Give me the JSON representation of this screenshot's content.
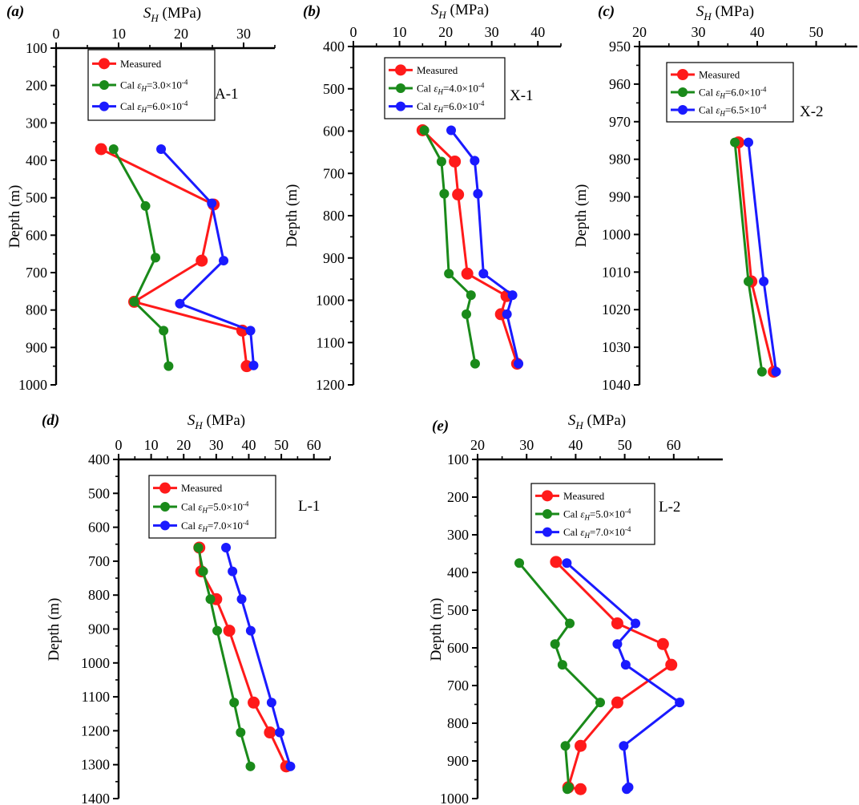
{
  "figure": {
    "panels": [
      {
        "id": "a",
        "letter": "(a)",
        "well": "A-1"
      },
      {
        "id": "b",
        "letter": "(b)",
        "well": "X-1"
      },
      {
        "id": "c",
        "letter": "(c)",
        "well": "X-2"
      },
      {
        "id": "d",
        "letter": "(d)",
        "well": "L-1"
      },
      {
        "id": "e",
        "letter": "(e)",
        "well": "L-2"
      }
    ]
  },
  "colors": {
    "measured": "#ff1a1a",
    "cal_low": "#1a8a1a",
    "cal_high": "#1a1aff"
  },
  "chart_data": [
    {
      "panel": "(a)",
      "well": "A-1",
      "type": "line",
      "xlabel": "S_H (MPa)",
      "ylabel": "Depth (m)",
      "xlim": [
        0,
        35
      ],
      "ylim": [
        100,
        1000
      ],
      "xticks": [
        0,
        10,
        20,
        30
      ],
      "yticks": [
        100,
        200,
        300,
        400,
        500,
        600,
        700,
        800,
        900,
        1000
      ],
      "series": [
        {
          "name": "Measured",
          "legend_prefix": "Measured",
          "legend_value": "",
          "color_key": "measured",
          "x": [
            7.2,
            25.2,
            23.3,
            12.5,
            29.8,
            30.5
          ],
          "y": [
            370,
            518,
            668,
            778,
            855,
            950
          ]
        },
        {
          "name": "Cal εH=3.0×10⁻⁴",
          "legend_prefix": "Cal ε",
          "legend_sub": "H",
          "legend_value": "=3.0×10",
          "legend_exp": "-4",
          "color_key": "cal_low",
          "x": [
            9.2,
            14.3,
            15.9,
            12.5,
            17.2,
            18.0
          ],
          "y": [
            370,
            522,
            660,
            778,
            855,
            950
          ]
        },
        {
          "name": "Cal εH=6.0×10⁻⁴",
          "legend_prefix": "Cal ε",
          "legend_sub": "H",
          "legend_value": "=6.0×10",
          "legend_exp": "-4",
          "color_key": "cal_high",
          "x": [
            16.8,
            24.9,
            26.8,
            19.8,
            31.1,
            31.6
          ],
          "y": [
            370,
            515,
            668,
            783,
            855,
            948
          ]
        }
      ]
    },
    {
      "panel": "(b)",
      "well": "X-1",
      "type": "line",
      "xlabel": "S_H (MPa)",
      "ylabel": "Depth (m)",
      "xlim": [
        0,
        45
      ],
      "ylim": [
        400,
        1200
      ],
      "xticks": [
        0,
        10,
        20,
        30,
        40
      ],
      "yticks": [
        400,
        500,
        600,
        700,
        800,
        900,
        1000,
        1100,
        1200
      ],
      "series": [
        {
          "name": "Measured",
          "legend_prefix": "Measured",
          "legend_value": "",
          "color_key": "measured",
          "x": [
            15.0,
            22.0,
            22.7,
            24.7,
            33.2,
            32.0,
            35.5
          ],
          "y": [
            598,
            672,
            750,
            937,
            990,
            1033,
            1150
          ]
        },
        {
          "name": "Cal εH=4.0×10⁻⁴",
          "legend_prefix": "Cal ε",
          "legend_sub": "H",
          "legend_value": "=4.0×10",
          "legend_exp": "-4",
          "color_key": "cal_low",
          "x": [
            15.4,
            19.1,
            19.7,
            20.7,
            25.5,
            24.5,
            26.4
          ],
          "y": [
            598,
            672,
            748,
            937,
            988,
            1033,
            1150
          ]
        },
        {
          "name": "Cal εH=6.0×10⁻⁴",
          "legend_prefix": "Cal ε",
          "legend_sub": "H",
          "legend_value": "=6.0×10",
          "legend_exp": "-4",
          "color_key": "cal_high",
          "x": [
            21.2,
            26.3,
            27.0,
            28.2,
            34.5,
            33.3,
            35.8
          ],
          "y": [
            598,
            670,
            748,
            937,
            988,
            1033,
            1150
          ]
        }
      ]
    },
    {
      "panel": "(c)",
      "well": "X-2",
      "type": "line",
      "xlabel": "S_H (MPa)",
      "ylabel": "Depth (m)",
      "xlim": [
        20,
        57
      ],
      "ylim": [
        950,
        1040
      ],
      "xticks": [
        20,
        30,
        40,
        50
      ],
      "yticks": [
        950,
        960,
        970,
        980,
        990,
        1000,
        1010,
        1020,
        1030,
        1040
      ],
      "series": [
        {
          "name": "Measured",
          "legend_prefix": "Measured",
          "legend_value": "",
          "color_key": "measured",
          "x": [
            36.8,
            39.0,
            42.8
          ],
          "y": [
            975.5,
            1012.5,
            1036.5
          ]
        },
        {
          "name": "Cal εH=6.0×10⁻⁴",
          "legend_prefix": "Cal ε",
          "legend_sub": "H",
          "legend_value": "=6.0×10",
          "legend_exp": "-4",
          "color_key": "cal_low",
          "x": [
            36.2,
            38.5,
            40.8
          ],
          "y": [
            975.5,
            1012.5,
            1036.5
          ]
        },
        {
          "name": "Cal εH=6.5×10⁻⁴",
          "legend_prefix": "Cal ε",
          "legend_sub": "H",
          "legend_value": "=6.5×10",
          "legend_exp": "-4",
          "color_key": "cal_high",
          "x": [
            38.5,
            41.1,
            43.2
          ],
          "y": [
            975.5,
            1012.5,
            1036.5
          ]
        }
      ]
    },
    {
      "panel": "(d)",
      "well": "L-1",
      "type": "line",
      "xlabel": "S_H (MPa)",
      "ylabel": "Depth (m)",
      "xlim": [
        0,
        65
      ],
      "ylim": [
        400,
        1400
      ],
      "xticks": [
        0,
        10,
        20,
        30,
        40,
        50,
        60
      ],
      "yticks": [
        400,
        500,
        600,
        700,
        800,
        900,
        1000,
        1100,
        1200,
        1300,
        1400
      ],
      "series": [
        {
          "name": "Measured",
          "legend_prefix": "Measured",
          "legend_value": "",
          "color_key": "measured",
          "x": [
            24.8,
            25.4,
            30.0,
            34.0,
            41.5,
            46.5,
            51.5
          ],
          "y": [
            660,
            730,
            812,
            905,
            1117,
            1205,
            1305
          ]
        },
        {
          "name": "Cal εH=5.0×10⁻⁴",
          "legend_prefix": "Cal ε",
          "legend_sub": "H",
          "legend_value": "=5.0×10",
          "legend_exp": "-4",
          "color_key": "cal_low",
          "x": [
            24.5,
            26.0,
            28.2,
            30.3,
            35.5,
            37.5,
            40.5
          ],
          "y": [
            660,
            730,
            812,
            905,
            1117,
            1205,
            1305
          ]
        },
        {
          "name": "Cal εH=7.0×10⁻⁴",
          "legend_prefix": "Cal ε",
          "legend_sub": "H",
          "legend_value": "=7.0×10",
          "legend_exp": "-4",
          "color_key": "cal_high",
          "x": [
            33.0,
            35.0,
            37.8,
            40.6,
            47.0,
            49.5,
            52.8
          ],
          "y": [
            660,
            730,
            812,
            905,
            1117,
            1205,
            1305
          ]
        }
      ]
    },
    {
      "panel": "(e)",
      "well": "L-2",
      "type": "line",
      "xlabel": "S_H (MPa)",
      "ylabel": "Depth (m)",
      "xlim": [
        20,
        70
      ],
      "ylim": [
        100,
        1000
      ],
      "xticks": [
        20,
        30,
        40,
        50,
        60
      ],
      "yticks": [
        100,
        200,
        300,
        400,
        500,
        600,
        700,
        800,
        900,
        1000
      ],
      "series": [
        {
          "name": "Measured",
          "legend_prefix": "Measured",
          "legend_value": "",
          "color_key": "measured",
          "x": [
            36.0,
            48.5,
            57.8,
            59.5,
            48.5,
            41.0,
            38.5,
            41.0
          ],
          "y": [
            372,
            535,
            590,
            645,
            745,
            860,
            970,
            975
          ]
        },
        {
          "name": "Cal εH=5.0×10⁻⁴",
          "legend_prefix": "Cal ε",
          "legend_sub": "H",
          "legend_value": "=5.0×10",
          "legend_exp": "-4",
          "color_key": "cal_low",
          "x": [
            28.5,
            38.8,
            35.8,
            37.3,
            45.0,
            37.9,
            38.6,
            38.3
          ],
          "y": [
            375,
            535,
            590,
            645,
            745,
            860,
            970,
            975
          ]
        },
        {
          "name": "Cal εH=7.0×10⁻⁴",
          "legend_prefix": "Cal ε",
          "legend_sub": "H",
          "legend_value": "=7.0×10",
          "legend_exp": "-4",
          "color_key": "cal_high",
          "x": [
            38.2,
            52.2,
            48.5,
            50.2,
            61.2,
            49.8,
            50.8,
            50.4
          ],
          "y": [
            375,
            535,
            590,
            645,
            745,
            860,
            970,
            975
          ]
        }
      ]
    }
  ]
}
